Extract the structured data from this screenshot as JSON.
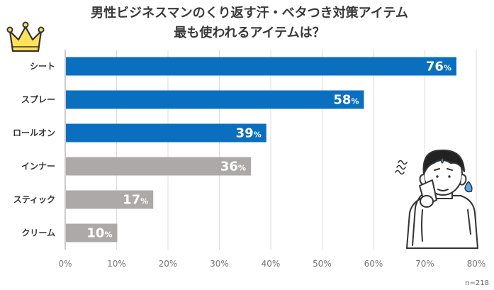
{
  "chart_data": {
    "type": "bar",
    "orientation": "horizontal",
    "title": "男性ビジネスマンのくり返す汗・ベタつき対策アイテム",
    "subtitle": "最も使われるアイテムは？",
    "categories": [
      "シート",
      "スプレー",
      "ロールオン",
      "インナー",
      "スティック",
      "クリーム"
    ],
    "values": [
      76,
      58,
      39,
      36,
      17,
      10
    ],
    "value_suffix": "%",
    "highlight_count": 3,
    "colors": {
      "highlight": "#0b6fc0",
      "normal": "#ada9a8"
    },
    "xlim": [
      0,
      80
    ],
    "xticks": [
      0,
      10,
      20,
      30,
      40,
      50,
      60,
      70,
      80
    ],
    "tick_suffix": "%",
    "grid": true,
    "note": "n=218"
  },
  "decorations": {
    "crown_icon": "crown-icon",
    "person_icon": "sweating-man-illustration"
  }
}
